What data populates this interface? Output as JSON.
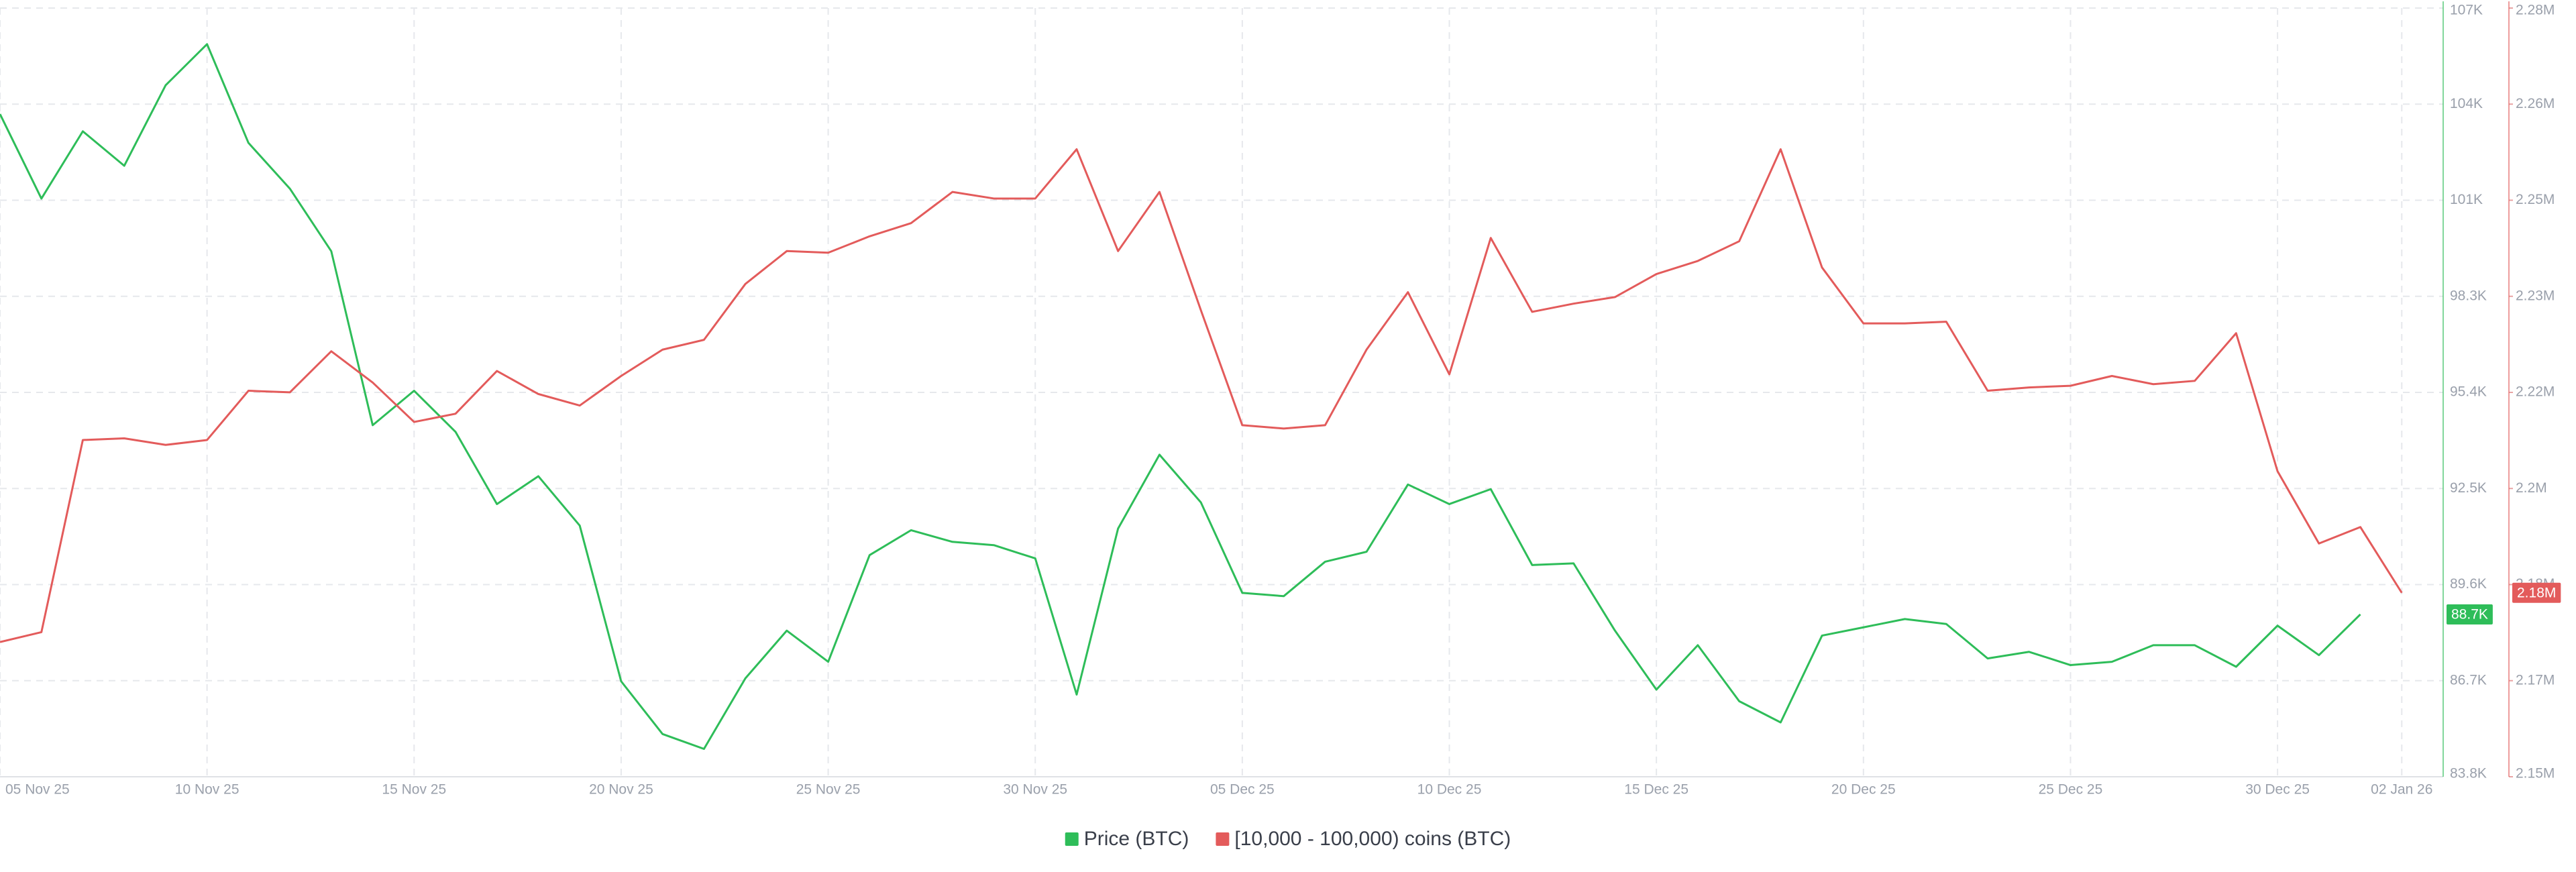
{
  "chart_data": {
    "type": "line",
    "x": [
      "2025-11-05",
      "2025-11-06",
      "2025-11-07",
      "2025-11-08",
      "2025-11-09",
      "2025-11-10",
      "2025-11-11",
      "2025-11-12",
      "2025-11-13",
      "2025-11-14",
      "2025-11-15",
      "2025-11-16",
      "2025-11-17",
      "2025-11-18",
      "2025-11-19",
      "2025-11-20",
      "2025-11-21",
      "2025-11-22",
      "2025-11-23",
      "2025-11-24",
      "2025-11-25",
      "2025-11-26",
      "2025-11-27",
      "2025-11-28",
      "2025-11-29",
      "2025-11-30",
      "2025-12-01",
      "2025-12-02",
      "2025-12-03",
      "2025-12-04",
      "2025-12-05",
      "2025-12-06",
      "2025-12-07",
      "2025-12-08",
      "2025-12-09",
      "2025-12-10",
      "2025-12-11",
      "2025-12-12",
      "2025-12-13",
      "2025-12-14",
      "2025-12-15",
      "2025-12-16",
      "2025-12-17",
      "2025-12-18",
      "2025-12-19",
      "2025-12-20",
      "2025-12-21",
      "2025-12-22",
      "2025-12-23",
      "2025-12-24",
      "2025-12-25",
      "2025-12-26",
      "2025-12-27",
      "2025-12-28",
      "2025-12-29",
      "2025-12-30",
      "2025-12-31",
      "2026-01-01",
      "2026-01-02"
    ],
    "xlim": [
      "2025-11-05",
      "2026-01-03"
    ],
    "xticks": [
      {
        "value": "2025-11-05",
        "label": "05 Nov 25"
      },
      {
        "value": "2025-11-10",
        "label": "10 Nov 25"
      },
      {
        "value": "2025-11-15",
        "label": "15 Nov 25"
      },
      {
        "value": "2025-11-20",
        "label": "20 Nov 25"
      },
      {
        "value": "2025-11-25",
        "label": "25 Nov 25"
      },
      {
        "value": "2025-11-30",
        "label": "30 Nov 25"
      },
      {
        "value": "2025-12-05",
        "label": "05 Dec 25"
      },
      {
        "value": "2025-12-10",
        "label": "10 Dec 25"
      },
      {
        "value": "2025-12-15",
        "label": "15 Dec 25"
      },
      {
        "value": "2025-12-20",
        "label": "20 Dec 25"
      },
      {
        "value": "2025-12-25",
        "label": "25 Dec 25"
      },
      {
        "value": "2025-12-30",
        "label": "30 Dec 25"
      },
      {
        "value": "2026-01-02",
        "label": "02 Jan 26"
      }
    ],
    "ylim": [
      83800,
      107000
    ],
    "yticks": [
      {
        "value": 83800,
        "label": "83.8K"
      },
      {
        "value": 86700,
        "label": "86.7K"
      },
      {
        "value": 89600,
        "label": "89.6K"
      },
      {
        "value": 92500,
        "label": "92.5K"
      },
      {
        "value": 95400,
        "label": "95.4K"
      },
      {
        "value": 98300,
        "label": "98.3K"
      },
      {
        "value": 101200,
        "label": "101K"
      },
      {
        "value": 104100,
        "label": "104K"
      },
      {
        "value": 107000,
        "label": "107K"
      }
    ],
    "y2lim": [
      2150000,
      2280000
    ],
    "y2ticks": [
      {
        "value": 2150000,
        "label": "2.15M"
      },
      {
        "value": 2166250,
        "label": "2.17M"
      },
      {
        "value": 2182500,
        "label": "2.18M"
      },
      {
        "value": 2198750,
        "label": "2.2M"
      },
      {
        "value": 2215000,
        "label": "2.22M"
      },
      {
        "value": 2231250,
        "label": "2.23M"
      },
      {
        "value": 2247500,
        "label": "2.25M"
      },
      {
        "value": 2263750,
        "label": "2.26M"
      },
      {
        "value": 2280000,
        "label": "2.28M"
      }
    ],
    "grid": true,
    "legend": "bottom",
    "series": [
      {
        "name": "Price (BTC)",
        "color": "#2ebd59",
        "axis": "y",
        "values": [
          103800,
          101250,
          103280,
          102240,
          104670,
          105910,
          102930,
          101550,
          99660,
          94410,
          95450,
          94210,
          92030,
          92870,
          91380,
          86680,
          85090,
          84640,
          86770,
          88210,
          87270,
          90490,
          91240,
          90890,
          90790,
          90390,
          86280,
          91290,
          93520,
          92080,
          89350,
          89250,
          90290,
          90590,
          92620,
          92030,
          92480,
          90190,
          90240,
          88210,
          86430,
          87770,
          86080,
          85440,
          88060,
          88310,
          88560,
          88410,
          87370,
          87570,
          87170,
          87270,
          87770,
          87770,
          87120,
          88360,
          87470,
          88700,
          null
        ],
        "end_label": "88.7K"
      },
      {
        "name": "[10,000 - 100,000) coins (BTC)",
        "color": "#e35b5b",
        "axis": "y2",
        "values": [
          2172780,
          2174450,
          2206950,
          2207230,
          2206120,
          2206950,
          2215280,
          2215010,
          2221950,
          2216670,
          2210000,
          2211390,
          2218620,
          2214730,
          2212780,
          2217780,
          2222230,
          2223890,
          2233340,
          2238900,
          2238620,
          2241400,
          2243620,
          2248900,
          2247790,
          2247790,
          2256120,
          2238900,
          2248900,
          2228900,
          2209450,
          2208890,
          2209450,
          2222230,
          2231950,
          2218060,
          2241120,
          2228620,
          2230010,
          2231120,
          2235010,
          2237230,
          2240560,
          2256120,
          2236120,
          2226670,
          2226670,
          2226950,
          2215280,
          2215840,
          2216120,
          2217780,
          2216390,
          2216950,
          2225010,
          2201670,
          2189450,
          2192230,
          2181110
        ],
        "end_label": "2.18M"
      }
    ]
  }
}
